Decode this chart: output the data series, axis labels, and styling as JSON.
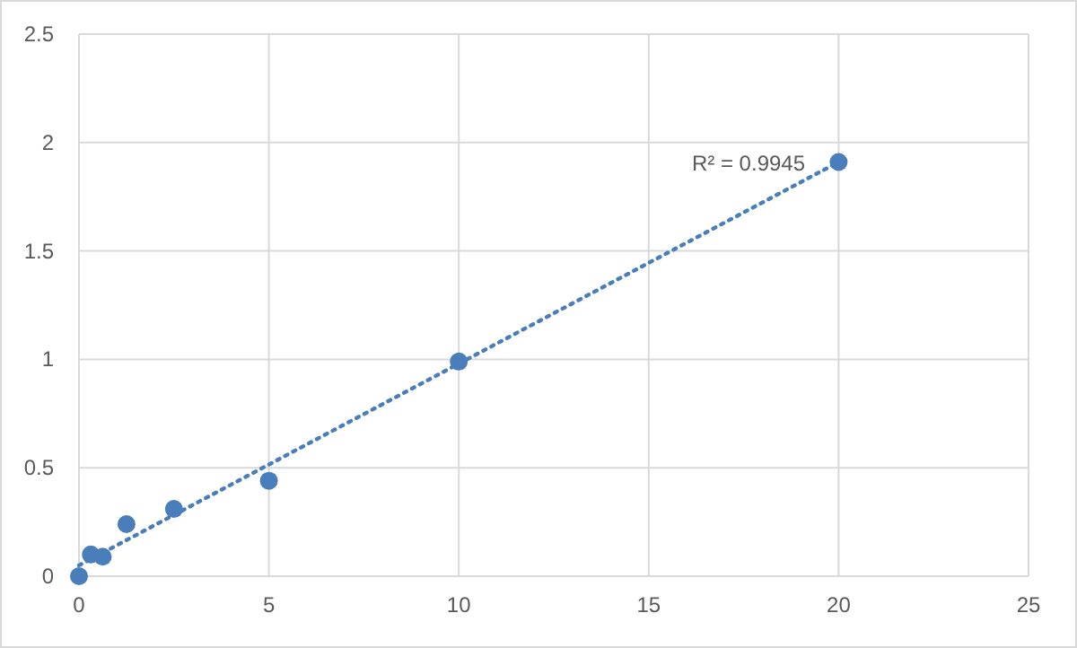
{
  "chart_data": {
    "type": "scatter",
    "xlim": [
      0,
      25
    ],
    "xticks": [
      0,
      5,
      10,
      15,
      20,
      25
    ],
    "ylim": [
      0,
      2.5
    ],
    "yticks": [
      0,
      0.5,
      1,
      1.5,
      2,
      2.5
    ],
    "grid": true,
    "series": [
      {
        "marker": "circle",
        "color": "#4a7ebb",
        "x": [
          0,
          0.3125,
          0.625,
          1.25,
          2.5,
          5,
          10,
          20
        ],
        "values": [
          0,
          0.1,
          0.09,
          0.24,
          0.31,
          0.44,
          0.99,
          1.91
        ]
      },
      {
        "type": "line",
        "color": "#4a7ebb",
        "line_style": "dotted",
        "x": [
          0,
          20
        ],
        "values": [
          0.05,
          1.91
        ]
      }
    ],
    "annotations": [
      "R² = 0.9945"
    ]
  }
}
